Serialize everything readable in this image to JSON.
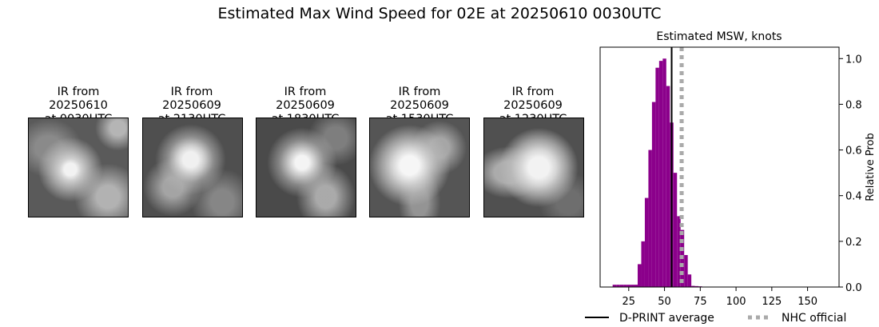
{
  "suptitle": "Estimated Max Wind Speed for 02E at 20250610 0030UTC",
  "ir_panels": [
    {
      "line1": "IR from",
      "line2": "20250610",
      "line3": "at 0030UTC"
    },
    {
      "line1": "IR from",
      "line2": "20250609",
      "line3": "at 2130UTC"
    },
    {
      "line1": "IR from",
      "line2": "20250609",
      "line3": "at 1830UTC"
    },
    {
      "line1": "IR from",
      "line2": "20250609",
      "line3": "at 1530UTC"
    },
    {
      "line1": "IR from",
      "line2": "20250609",
      "line3": "at 1230UTC"
    }
  ],
  "chart_data": {
    "type": "bar",
    "title": "Estimated MSW, knots",
    "ylabel": "Relative Prob",
    "xlim": [
      5,
      172
    ],
    "ylim": [
      0,
      1.05
    ],
    "xticks": [
      25,
      50,
      75,
      100,
      125,
      150
    ],
    "yticks": [
      0.0,
      0.2,
      0.4,
      0.6,
      0.8,
      1.0
    ],
    "bin_width": 2.5,
    "bins": [
      {
        "x": 15,
        "y": 0.01
      },
      {
        "x": 17.5,
        "y": 0.01
      },
      {
        "x": 20,
        "y": 0.01
      },
      {
        "x": 22.5,
        "y": 0.01
      },
      {
        "x": 25,
        "y": 0.01
      },
      {
        "x": 27.5,
        "y": 0.01
      },
      {
        "x": 30,
        "y": 0.01
      },
      {
        "x": 32.5,
        "y": 0.1
      },
      {
        "x": 35,
        "y": 0.2
      },
      {
        "x": 37.5,
        "y": 0.39
      },
      {
        "x": 40,
        "y": 0.6
      },
      {
        "x": 42.5,
        "y": 0.81
      },
      {
        "x": 45,
        "y": 0.96
      },
      {
        "x": 47.5,
        "y": 0.99
      },
      {
        "x": 50,
        "y": 1.0
      },
      {
        "x": 52.5,
        "y": 0.88
      },
      {
        "x": 55,
        "y": 0.72
      },
      {
        "x": 57.5,
        "y": 0.5
      },
      {
        "x": 60,
        "y": 0.31
      },
      {
        "x": 62.5,
        "y": 0.25
      },
      {
        "x": 65,
        "y": 0.14
      },
      {
        "x": 67.5,
        "y": 0.055
      },
      {
        "x": 70,
        "y": 0.005
      },
      {
        "x": 72.5,
        "y": 0.004
      },
      {
        "x": 75,
        "y": 0.003
      }
    ],
    "dprint_average": 55,
    "nhc_official": 62,
    "bar_color": "#8b008b",
    "legend": [
      {
        "label": "D-PRINT average",
        "color": "#000000",
        "style": "solid"
      },
      {
        "label": "NHC official",
        "color": "#aaaaaa",
        "style": "dotted"
      }
    ],
    "legend_position": "bottom"
  }
}
